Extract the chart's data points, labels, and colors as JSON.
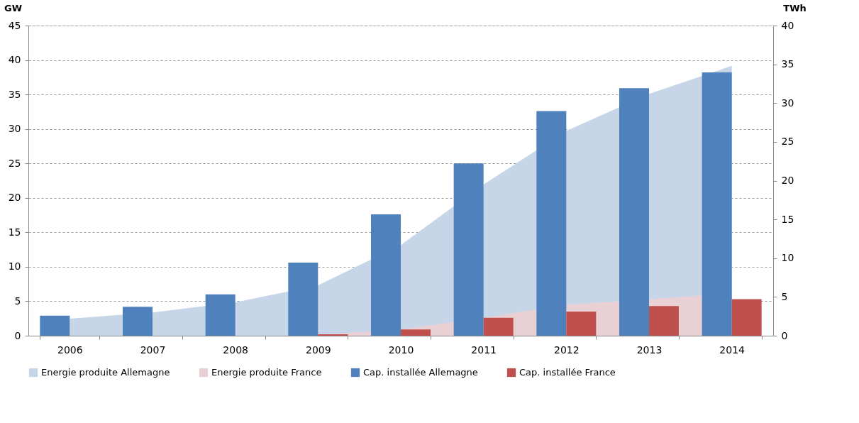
{
  "chart_data": {
    "type": "bar",
    "categories": [
      "2006",
      "2007",
      "2008",
      "2009",
      "2010",
      "2011",
      "2012",
      "2013",
      "2014"
    ],
    "ylabel": "GW",
    "y2label": "TWh",
    "ylim": [
      0,
      45
    ],
    "yticks": [
      0,
      5,
      10,
      15,
      20,
      25,
      30,
      35,
      40,
      45
    ],
    "y2lim": [
      0,
      40
    ],
    "y2ticks": [
      0,
      5,
      10,
      15,
      20,
      25,
      30,
      35,
      40
    ],
    "grid": "y",
    "legend": "bottom",
    "series": [
      {
        "name": "Energie produite Allemagne",
        "type": "area",
        "axis": "y2",
        "color": "#c6d6e8",
        "values": [
          2.2,
          3.0,
          4.3,
          6.5,
          11.7,
          19.5,
          26.4,
          31.2,
          34.8
        ]
      },
      {
        "name": "Energie produite France",
        "type": "area",
        "axis": "y2",
        "color": "#e8d0d4",
        "values": [
          null,
          null,
          null,
          0.1,
          0.8,
          2.3,
          4.0,
          4.7,
          5.5
        ]
      },
      {
        "name": "Cap. installée Allemagne",
        "color": "#4f81bd",
        "values": [
          2.9,
          4.2,
          6.0,
          10.6,
          17.6,
          25.0,
          32.6,
          35.9,
          38.2
        ]
      },
      {
        "name": "Cap. installée France",
        "color": "#c0504d",
        "values": [
          0,
          0,
          0,
          0.2,
          0.9,
          2.6,
          3.5,
          4.3,
          5.3
        ]
      }
    ]
  }
}
